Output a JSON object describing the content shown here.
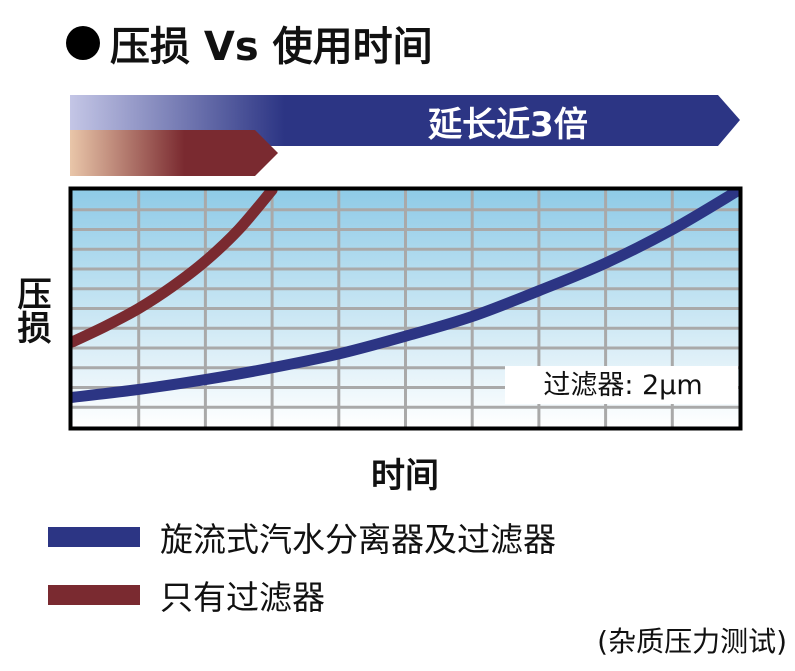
{
  "title": "压损 Vs 使用时间",
  "ylabel": "压损",
  "xlabel": "时间",
  "banner_text": "延长近3倍",
  "annotation": "过滤器: 2μm",
  "note": "(杂质压力测试)",
  "legend": [
    {
      "label": "旋流式汽水分离器及过滤器",
      "color": "#2c3584"
    },
    {
      "label": "只有过滤器",
      "color": "#7a2a30"
    }
  ],
  "colors": {
    "series_separator": "#2c3584",
    "series_filter_only": "#7a2a30",
    "banner_long": "#2c3584",
    "banner_short": "#7a2a30",
    "grid": "#a9a9a9",
    "plot_bg_top": "#8fcbe7",
    "plot_bg_bottom": "#ffffff"
  },
  "chart_data": {
    "type": "line",
    "title": "压损 Vs 使用时间",
    "xlabel": "时间",
    "ylabel": "压损",
    "xlim": [
      0,
      10
    ],
    "ylim": [
      0,
      12
    ],
    "grid": true,
    "x_ticks_shown": false,
    "y_ticks_shown": false,
    "legend_position": "bottom",
    "annotation": "过滤器: 2μm",
    "series": [
      {
        "name": "旋流式汽水分离器及过滤器",
        "color": "#2c3584",
        "x": [
          0,
          1,
          2,
          3,
          4,
          5,
          6,
          7,
          8,
          9,
          10
        ],
        "y": [
          1.5,
          1.9,
          2.4,
          3.0,
          3.7,
          4.6,
          5.6,
          6.9,
          8.3,
          10.0,
          12.0
        ]
      },
      {
        "name": "只有过滤器",
        "color": "#7a2a30",
        "x": [
          0,
          0.5,
          1,
          1.5,
          2,
          2.5,
          3.0
        ],
        "y": [
          4.3,
          5.1,
          6.0,
          7.1,
          8.4,
          10.0,
          12.0
        ]
      }
    ],
    "lifetime_bars": [
      {
        "series": "旋流式汽水分离器及过滤器",
        "end_x": 10,
        "label": "延长近3倍"
      },
      {
        "series": "只有过滤器",
        "end_x": 3.0
      }
    ]
  }
}
